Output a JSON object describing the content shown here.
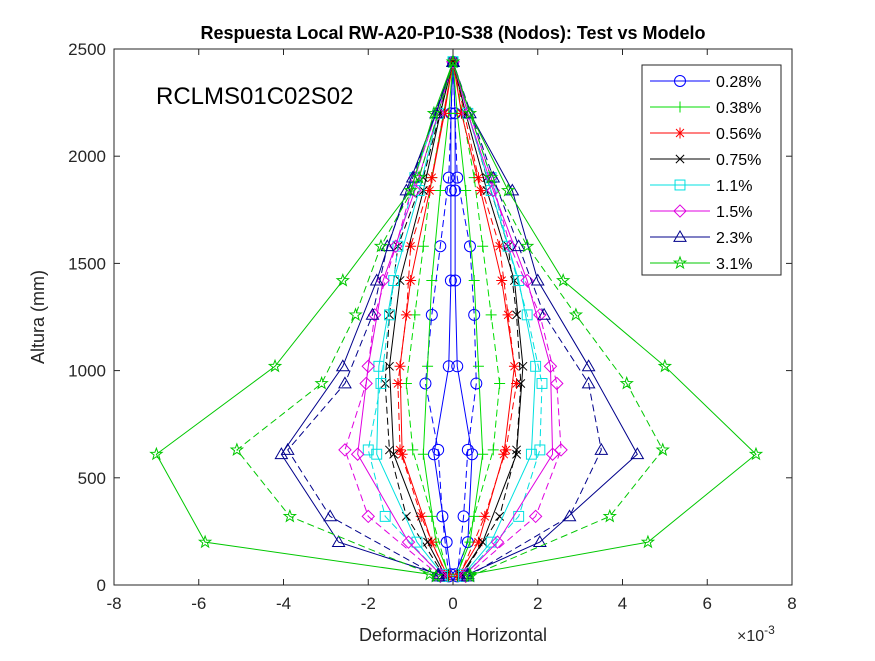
{
  "chart_data": {
    "type": "line",
    "title": "Respuesta Local RW-A20-P10-S38 (Nodos): Test vs Modelo",
    "annotation": "RCLMS01C02S02",
    "xlabel": "Deformación Horizontal",
    "ylabel": "Altura (mm)",
    "x_multiplier": "×10",
    "x_multiplier_exp": "-3",
    "x_units": "1e-3",
    "xlim": [
      -8,
      8
    ],
    "ylim": [
      0,
      2500
    ],
    "xticks": [
      -8,
      -6,
      -4,
      -2,
      0,
      2,
      4,
      6,
      8
    ],
    "yticks": [
      0,
      500,
      1000,
      1500,
      2000,
      2500
    ],
    "xtick_labels": [
      "-8",
      "-6",
      "-4",
      "-2",
      "0",
      "2",
      "4",
      "6",
      "8"
    ],
    "ytick_labels": [
      "0",
      "500",
      "1000",
      "1500",
      "2000",
      "2500"
    ],
    "grid": false,
    "legend_position": "top-right",
    "line_styles": {
      "test": "solid",
      "model": "dashed"
    },
    "heights_test": [
      50,
      200,
      610,
      1020,
      1420,
      1840,
      2200,
      2440
    ],
    "heights_model": [
      40,
      320,
      630,
      940,
      1260,
      1580,
      1900,
      2440
    ],
    "series": [
      {
        "name": "0.28%",
        "color": "#0000ff",
        "marker": "circle",
        "test_right": [
          0.05,
          0.35,
          0.45,
          0.1,
          0.05,
          0.05,
          0.05,
          0.0
        ],
        "test_left": [
          -0.05,
          -0.15,
          -0.45,
          -0.1,
          -0.05,
          -0.05,
          -0.05,
          0.0
        ],
        "model_right": [
          0.1,
          0.25,
          0.35,
          0.55,
          0.5,
          0.4,
          0.1,
          0.0
        ],
        "model_left": [
          -0.1,
          -0.25,
          -0.35,
          -0.65,
          -0.5,
          -0.3,
          -0.1,
          0.0
        ]
      },
      {
        "name": "0.38%",
        "color": "#00dd00",
        "marker": "plus",
        "test_right": [
          0.1,
          0.4,
          0.7,
          0.6,
          0.5,
          0.3,
          0.1,
          0.0
        ],
        "test_left": [
          -0.1,
          -0.4,
          -0.7,
          -0.6,
          -0.5,
          -0.3,
          -0.1,
          0.0
        ],
        "model_right": [
          0.1,
          0.5,
          0.95,
          1.1,
          0.9,
          0.7,
          0.5,
          0.0
        ],
        "model_left": [
          -0.1,
          -0.5,
          -0.95,
          -1.1,
          -0.9,
          -0.7,
          -0.5,
          0.0
        ]
      },
      {
        "name": "0.56%",
        "color": "#ff0000",
        "marker": "asterisk",
        "test_right": [
          0.15,
          0.6,
          1.2,
          1.45,
          1.15,
          0.65,
          0.2,
          0.0
        ],
        "test_left": [
          -0.15,
          -0.5,
          -1.2,
          -1.25,
          -1.0,
          -0.55,
          -0.2,
          0.0
        ],
        "model_right": [
          0.15,
          0.75,
          1.25,
          1.5,
          1.3,
          1.1,
          0.6,
          0.0
        ],
        "model_left": [
          -0.15,
          -0.75,
          -1.25,
          -1.3,
          -1.1,
          -1.0,
          -0.5,
          0.0
        ]
      },
      {
        "name": "0.75%",
        "color": "#000000",
        "marker": "cross",
        "test_right": [
          0.2,
          0.7,
          1.5,
          1.65,
          1.45,
          0.8,
          0.3,
          0.0
        ],
        "test_left": [
          -0.2,
          -0.6,
          -1.4,
          -1.5,
          -1.25,
          -0.7,
          -0.3,
          0.0
        ],
        "model_right": [
          0.2,
          1.1,
          1.5,
          1.6,
          1.5,
          1.3,
          0.8,
          0.0
        ],
        "model_left": [
          -0.2,
          -1.1,
          -1.5,
          -1.6,
          -1.5,
          -1.3,
          -0.7,
          0.0
        ]
      },
      {
        "name": "1.1%",
        "color": "#00e0e0",
        "marker": "square",
        "test_right": [
          0.25,
          0.9,
          1.85,
          1.95,
          1.55,
          0.9,
          0.35,
          0.0
        ],
        "test_left": [
          -0.25,
          -0.85,
          -1.8,
          -1.75,
          -1.4,
          -0.8,
          -0.35,
          0.0
        ],
        "model_right": [
          0.25,
          1.55,
          2.05,
          2.1,
          1.75,
          1.3,
          0.9,
          0.0
        ],
        "model_left": [
          -0.25,
          -1.6,
          -2.0,
          -1.7,
          -1.5,
          -1.3,
          -0.9,
          0.0
        ]
      },
      {
        "name": "1.5%",
        "color": "#e000e0",
        "marker": "diamond",
        "test_right": [
          0.3,
          1.05,
          2.35,
          2.3,
          1.75,
          0.95,
          0.35,
          0.0
        ],
        "test_left": [
          -0.3,
          -1.05,
          -2.25,
          -2.0,
          -1.65,
          -0.9,
          -0.35,
          0.0
        ],
        "model_right": [
          0.3,
          1.95,
          2.55,
          2.45,
          2.05,
          1.35,
          0.9,
          0.0
        ],
        "model_left": [
          -0.3,
          -2.0,
          -2.55,
          -2.05,
          -1.85,
          -1.35,
          -0.9,
          0.0
        ]
      },
      {
        "name": "2.3%",
        "color": "#00008b",
        "marker": "triangle",
        "test_right": [
          0.35,
          2.05,
          4.35,
          3.2,
          2.0,
          1.4,
          0.4,
          0.0
        ],
        "test_left": [
          -0.35,
          -2.7,
          -4.05,
          -2.6,
          -1.8,
          -1.1,
          -0.4,
          0.0
        ],
        "model_right": [
          0.35,
          2.75,
          3.5,
          3.2,
          2.15,
          1.55,
          0.95,
          0.0
        ],
        "model_left": [
          -0.35,
          -2.9,
          -3.9,
          -2.55,
          -1.9,
          -1.55,
          -0.95,
          0.0
        ]
      },
      {
        "name": "3.1%",
        "color": "#00c800",
        "marker": "star",
        "test_right": [
          0.4,
          4.6,
          7.15,
          5.0,
          2.6,
          1.3,
          0.4,
          0.0
        ],
        "test_left": [
          -0.55,
          -5.85,
          -7.0,
          -4.2,
          -2.6,
          -1.0,
          -0.45,
          0.0
        ],
        "model_right": [
          0.4,
          3.7,
          4.95,
          4.1,
          2.9,
          1.75,
          0.9,
          0.0
        ],
        "model_left": [
          -0.4,
          -3.85,
          -5.1,
          -3.1,
          -2.3,
          -1.7,
          -0.8,
          0.0
        ]
      }
    ]
  }
}
